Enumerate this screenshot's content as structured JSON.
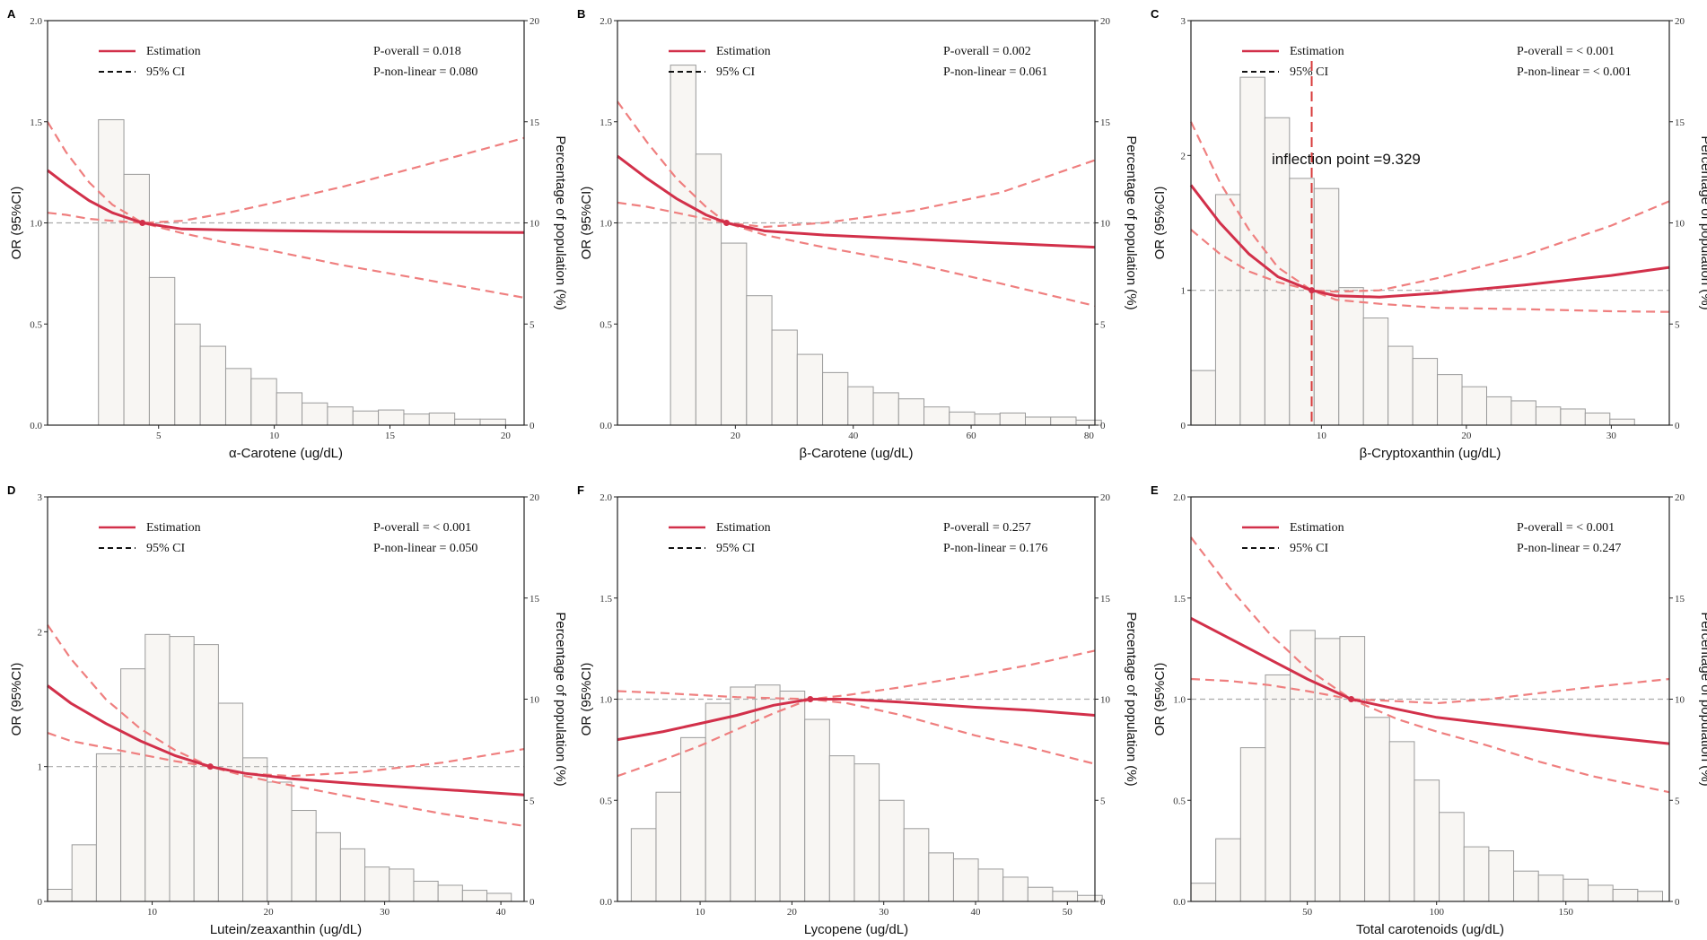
{
  "figure": {
    "legend_estimation": "Estimation",
    "legend_ci": "95% CI",
    "left_axis_label": "OR (95%CI)",
    "right_axis_label": "Percentage of population (%)"
  },
  "colors": {
    "estimation": "#d2304a",
    "ci": "#ef7f7f",
    "bar_fill": "#f8f6f3",
    "bar_stroke": "#9a9a9a",
    "reference": "#aaaaaa",
    "inflection": "#d83a3a"
  },
  "chart_data": [
    {
      "letter": "A",
      "type": "bar+line",
      "xlabel": "α-Carotene (ug/dL)",
      "xlim": [
        0.2,
        20.8
      ],
      "xticks": [
        5,
        10,
        15,
        20
      ],
      "ylim": [
        0,
        2.0
      ],
      "yticks": [
        "0.0",
        "0.5",
        "1.0",
        "1.5",
        "2.0"
      ],
      "y2lim": [
        0,
        20
      ],
      "y2ticks": [
        0,
        5,
        10,
        15,
        20
      ],
      "p_overall": "P-overall = 0.018",
      "p_nonlinear": "P-non-linear = 0.080",
      "bars": {
        "edges": [
          2.4,
          3.5,
          4.6,
          5.7,
          6.8,
          7.9,
          9.0,
          10.1,
          11.2,
          12.3,
          13.4,
          14.5,
          15.6,
          16.7,
          17.8,
          18.9,
          20.0
        ],
        "pct": [
          15.1,
          12.4,
          7.3,
          5.0,
          3.9,
          2.8,
          2.3,
          1.6,
          1.1,
          0.9,
          0.7,
          0.75,
          0.55,
          0.6,
          0.3,
          0.3
        ]
      },
      "estimation": {
        "x": [
          0.2,
          1,
          2,
          3,
          4.3,
          6,
          8,
          10,
          13,
          16,
          20.8
        ],
        "y": [
          1.26,
          1.19,
          1.11,
          1.05,
          1.0,
          0.97,
          0.965,
          0.962,
          0.958,
          0.955,
          0.952
        ]
      },
      "ci_upper": {
        "x": [
          0.2,
          1,
          2,
          3,
          4.3,
          6,
          8,
          10,
          13,
          16,
          20.8
        ],
        "y": [
          1.5,
          1.35,
          1.2,
          1.09,
          1.0,
          1.01,
          1.05,
          1.1,
          1.18,
          1.27,
          1.42
        ]
      },
      "ci_lower": {
        "x": [
          0.2,
          1,
          2,
          3,
          4.3,
          6,
          8,
          10,
          13,
          16,
          20.8
        ],
        "y": [
          1.05,
          1.04,
          1.02,
          1.01,
          1.0,
          0.95,
          0.9,
          0.86,
          0.79,
          0.73,
          0.63
        ]
      },
      "ref_point": [
        4.3,
        1.0
      ]
    },
    {
      "letter": "B",
      "type": "bar+line",
      "xlabel": "β-Carotene (ug/dL)",
      "xlim": [
        0,
        81
      ],
      "xticks": [
        20,
        40,
        60,
        80
      ],
      "ylim": [
        0,
        2.0
      ],
      "yticks": [
        "0.0",
        "0.5",
        "1.0",
        "1.5",
        "2.0"
      ],
      "y2lim": [
        0,
        20
      ],
      "y2ticks": [
        0,
        5,
        10,
        15,
        20
      ],
      "p_overall": "P-overall = 0.002",
      "p_nonlinear": "P-non-linear = 0.061",
      "bars": {
        "edges": [
          9,
          13.3,
          17.6,
          21.9,
          26.2,
          30.5,
          34.8,
          39.1,
          43.4,
          47.7,
          52.0,
          56.3,
          60.6,
          64.9,
          69.2,
          73.5,
          77.8,
          82.1
        ],
        "pct": [
          17.8,
          13.4,
          9.0,
          6.4,
          4.7,
          3.5,
          2.6,
          1.9,
          1.6,
          1.3,
          0.9,
          0.65,
          0.55,
          0.6,
          0.4,
          0.4,
          0.25
        ]
      },
      "estimation": {
        "x": [
          0,
          5,
          10,
          15,
          18.5,
          25,
          35,
          50,
          65,
          81
        ],
        "y": [
          1.33,
          1.22,
          1.12,
          1.04,
          1.0,
          0.96,
          0.94,
          0.92,
          0.9,
          0.88
        ]
      },
      "ci_upper": {
        "x": [
          0,
          5,
          10,
          15,
          18.5,
          25,
          35,
          50,
          65,
          81
        ],
        "y": [
          1.6,
          1.4,
          1.22,
          1.08,
          1.0,
          0.98,
          1.0,
          1.06,
          1.15,
          1.31
        ]
      },
      "ci_lower": {
        "x": [
          0,
          5,
          10,
          15,
          18.5,
          25,
          35,
          50,
          65,
          81
        ],
        "y": [
          1.1,
          1.08,
          1.05,
          1.02,
          1.0,
          0.94,
          0.88,
          0.8,
          0.7,
          0.59
        ]
      },
      "ref_point": [
        18.5,
        1.0
      ]
    },
    {
      "letter": "C",
      "type": "bar+line",
      "xlabel": "β-Cryptoxanthin (ug/dL)",
      "xlim": [
        1,
        34
      ],
      "xticks": [
        10,
        20,
        30
      ],
      "ylim": [
        0,
        3
      ],
      "yticks": [
        "0",
        "1",
        "2",
        "3"
      ],
      "y2lim": [
        0,
        20
      ],
      "y2ticks": [
        0,
        5,
        10,
        15,
        20
      ],
      "p_overall": "P-overall = < 0.001",
      "p_nonlinear": "P-non-linear = < 0.001",
      "inflection_label": "inflection point =9.329",
      "inflection_x": 9.329,
      "bars": {
        "edges": [
          1.0,
          2.7,
          4.4,
          6.1,
          7.8,
          9.5,
          11.2,
          12.9,
          14.6,
          16.3,
          18.0,
          19.7,
          21.4,
          23.1,
          24.8,
          26.5,
          28.2,
          29.9,
          31.6
        ],
        "pct": [
          2.7,
          11.4,
          17.2,
          15.2,
          12.2,
          11.7,
          6.8,
          5.3,
          3.9,
          3.3,
          2.5,
          1.9,
          1.4,
          1.2,
          0.9,
          0.8,
          0.6,
          0.3
        ]
      },
      "estimation": {
        "x": [
          1,
          3,
          5,
          7,
          9.329,
          11,
          14,
          18,
          24,
          30,
          34
        ],
        "y": [
          1.78,
          1.5,
          1.27,
          1.1,
          1.0,
          0.96,
          0.95,
          0.98,
          1.04,
          1.11,
          1.17
        ]
      },
      "ci_upper": {
        "x": [
          1,
          3,
          5,
          7,
          9.329,
          11,
          14,
          18,
          24,
          30,
          34
        ],
        "y": [
          2.25,
          1.8,
          1.45,
          1.17,
          1.0,
          0.99,
          1.0,
          1.09,
          1.26,
          1.48,
          1.66
        ]
      },
      "ci_lower": {
        "x": [
          1,
          3,
          5,
          7,
          9.329,
          11,
          14,
          18,
          24,
          30,
          34
        ],
        "y": [
          1.45,
          1.27,
          1.14,
          1.06,
          1.0,
          0.93,
          0.9,
          0.87,
          0.86,
          0.845,
          0.84
        ]
      },
      "ref_point": [
        9.329,
        1.0
      ]
    },
    {
      "letter": "D",
      "type": "bar+line",
      "xlabel": "Lutein/zeaxanthin (ug/dL)",
      "xlim": [
        1,
        42
      ],
      "xticks": [
        10,
        20,
        30,
        40
      ],
      "ylim": [
        0,
        3
      ],
      "yticks": [
        "0",
        "1",
        "2",
        "3"
      ],
      "y2lim": [
        0,
        20
      ],
      "y2ticks": [
        0,
        5,
        10,
        15,
        20
      ],
      "p_overall": "P-overall = < 0.001",
      "p_nonlinear": "P-non-linear = 0.050",
      "bars": {
        "edges": [
          1.0,
          3.1,
          5.2,
          7.3,
          9.4,
          11.5,
          13.6,
          15.7,
          17.8,
          19.9,
          22.0,
          24.1,
          26.2,
          28.3,
          30.4,
          32.5,
          34.6,
          36.7,
          38.8,
          40.9
        ],
        "pct": [
          0.6,
          2.8,
          7.3,
          11.5,
          13.2,
          13.1,
          12.7,
          9.8,
          7.1,
          5.9,
          4.5,
          3.4,
          2.6,
          1.7,
          1.6,
          1.0,
          0.8,
          0.55,
          0.4
        ]
      },
      "estimation": {
        "x": [
          1,
          3,
          6,
          9,
          12,
          15,
          18,
          22,
          28,
          35,
          42
        ],
        "y": [
          1.6,
          1.47,
          1.32,
          1.19,
          1.08,
          1.0,
          0.95,
          0.91,
          0.87,
          0.83,
          0.79
        ]
      },
      "ci_upper": {
        "x": [
          1,
          3,
          6,
          9,
          12,
          15,
          18,
          22,
          28,
          35,
          42
        ],
        "y": [
          2.05,
          1.8,
          1.5,
          1.28,
          1.12,
          1.0,
          0.95,
          0.93,
          0.96,
          1.03,
          1.13
        ]
      },
      "ci_lower": {
        "x": [
          1,
          3,
          6,
          9,
          12,
          15,
          18,
          22,
          28,
          35,
          42
        ],
        "y": [
          1.25,
          1.19,
          1.14,
          1.09,
          1.04,
          1.0,
          0.93,
          0.86,
          0.76,
          0.65,
          0.56
        ]
      },
      "ref_point": [
        15,
        1.0
      ]
    },
    {
      "letter": "F",
      "type": "bar+line",
      "xlabel": "Lycopene (ug/dL)",
      "xlim": [
        1,
        53
      ],
      "xticks": [
        10,
        20,
        30,
        40,
        50
      ],
      "ylim": [
        0,
        2.0
      ],
      "yticks": [
        "0.0",
        "0.5",
        "1.0",
        "1.5",
        "2.0"
      ],
      "y2lim": [
        0,
        20
      ],
      "y2ticks": [
        0,
        5,
        10,
        15,
        20
      ],
      "p_overall": "P-overall = 0.257",
      "p_nonlinear": "P-non-linear = 0.176",
      "bars": {
        "edges": [
          2.5,
          5.2,
          7.9,
          10.6,
          13.3,
          16.0,
          18.7,
          21.4,
          24.1,
          26.8,
          29.5,
          32.2,
          34.9,
          37.6,
          40.3,
          43.0,
          45.7,
          48.4,
          51.1,
          53.8
        ],
        "pct": [
          3.6,
          5.4,
          8.1,
          9.8,
          10.6,
          10.7,
          10.4,
          9.0,
          7.2,
          6.8,
          5.0,
          3.6,
          2.4,
          2.1,
          1.6,
          1.2,
          0.7,
          0.5,
          0.3
        ]
      },
      "estimation": {
        "x": [
          1,
          6,
          10,
          14,
          18,
          22,
          26,
          32,
          40,
          46,
          53
        ],
        "y": [
          0.8,
          0.84,
          0.88,
          0.92,
          0.97,
          1.0,
          1.0,
          0.985,
          0.96,
          0.945,
          0.92
        ]
      },
      "ci_upper": {
        "x": [
          1,
          6,
          10,
          14,
          18,
          22,
          26,
          32,
          40,
          46,
          53
        ],
        "y": [
          1.04,
          1.03,
          1.02,
          1.01,
          1.005,
          1.0,
          1.02,
          1.06,
          1.12,
          1.17,
          1.24
        ]
      },
      "ci_lower": {
        "x": [
          1,
          6,
          10,
          14,
          18,
          22,
          26,
          32,
          40,
          46,
          53
        ],
        "y": [
          0.62,
          0.7,
          0.77,
          0.85,
          0.93,
          1.0,
          0.98,
          0.92,
          0.82,
          0.76,
          0.68
        ]
      },
      "ref_point": [
        22,
        1.0
      ]
    },
    {
      "letter": "E",
      "type": "bar+line",
      "xlabel": "Total carotenoids (ug/dL)",
      "xlim": [
        5,
        190
      ],
      "xticks": [
        50,
        100,
        150
      ],
      "ylim": [
        0,
        2.0
      ],
      "yticks": [
        "0.0",
        "0.5",
        "1.0",
        "1.5",
        "2.0"
      ],
      "y2lim": [
        0,
        20
      ],
      "y2ticks": [
        0,
        5,
        10,
        15,
        20
      ],
      "p_overall": "P-overall = < 0.001",
      "p_nonlinear": "P-non-linear = 0.247",
      "bars": {
        "edges": [
          5,
          14.6,
          24.2,
          33.8,
          43.4,
          53.0,
          62.6,
          72.2,
          81.8,
          91.4,
          101.0,
          110.6,
          120.2,
          129.8,
          139.4,
          149.0,
          158.6,
          168.2,
          177.8,
          187.4
        ],
        "pct": [
          0.9,
          3.1,
          7.6,
          11.2,
          13.4,
          13.0,
          13.1,
          9.1,
          7.9,
          6.0,
          4.4,
          2.7,
          2.5,
          1.5,
          1.3,
          1.1,
          0.8,
          0.6,
          0.5
        ]
      },
      "estimation": {
        "x": [
          5,
          20,
          35,
          50,
          67,
          85,
          100,
          120,
          140,
          160,
          190
        ],
        "y": [
          1.4,
          1.3,
          1.2,
          1.1,
          1.0,
          0.95,
          0.91,
          0.88,
          0.85,
          0.82,
          0.78
        ]
      },
      "ci_upper": {
        "x": [
          5,
          20,
          35,
          50,
          67,
          85,
          100,
          120,
          140,
          160,
          190
        ],
        "y": [
          1.8,
          1.55,
          1.33,
          1.15,
          1.0,
          0.99,
          0.98,
          1.0,
          1.03,
          1.06,
          1.1
        ]
      },
      "ci_lower": {
        "x": [
          5,
          20,
          35,
          50,
          67,
          85,
          100,
          120,
          140,
          160,
          190
        ],
        "y": [
          1.1,
          1.09,
          1.07,
          1.04,
          1.0,
          0.9,
          0.84,
          0.77,
          0.69,
          0.62,
          0.54
        ]
      },
      "ref_point": [
        67,
        1.0
      ]
    }
  ]
}
